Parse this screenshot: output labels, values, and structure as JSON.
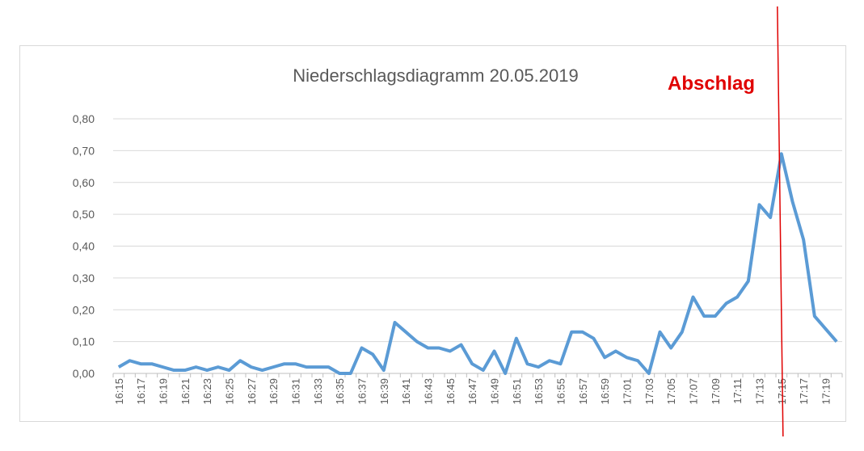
{
  "chart_data": {
    "type": "line",
    "title": "Niederschlagsdiagramm 20.05.2019",
    "xlabel": "",
    "ylabel": "",
    "ylim": [
      0,
      0.8
    ],
    "y_ticks": [
      "0,00",
      "0,10",
      "0,20",
      "0,30",
      "0,40",
      "0,50",
      "0,60",
      "0,70",
      "0,80"
    ],
    "grid": true,
    "series_color": "#5b9bd5",
    "x": [
      "16:15",
      "16:16",
      "16:17",
      "16:18",
      "16:19",
      "16:20",
      "16:21",
      "16:22",
      "16:23",
      "16:24",
      "16:25",
      "16:26",
      "16:27",
      "16:28",
      "16:29",
      "16:30",
      "16:31",
      "16:32",
      "16:33",
      "16:34",
      "16:35",
      "16:36",
      "16:37",
      "16:38",
      "16:39",
      "16:40",
      "16:41",
      "16:42",
      "16:43",
      "16:44",
      "16:45",
      "16:46",
      "16:47",
      "16:48",
      "16:49",
      "16:50",
      "16:51",
      "16:52",
      "16:53",
      "16:54",
      "16:55",
      "16:56",
      "16:57",
      "16:58",
      "16:59",
      "17:00",
      "17:01",
      "17:02",
      "17:03",
      "17:04",
      "17:05",
      "17:06",
      "17:07",
      "17:08",
      "17:09",
      "17:10",
      "17:11",
      "17:12",
      "17:13",
      "17:14",
      "17:15",
      "17:16",
      "17:17",
      "17:18",
      "17:19",
      "17:20"
    ],
    "x_tick_labels": [
      "16:15",
      "16:17",
      "16:19",
      "16:21",
      "16:23",
      "16:25",
      "16:27",
      "16:29",
      "16:31",
      "16:33",
      "16:35",
      "16:37",
      "16:39",
      "16:41",
      "16:43",
      "16:45",
      "16:47",
      "16:49",
      "16:51",
      "16:53",
      "16:55",
      "16:57",
      "16:59",
      "17:01",
      "17:03",
      "17:05",
      "17:07",
      "17:09",
      "17:11",
      "17:13",
      "17:15",
      "17:17",
      "17:19"
    ],
    "series": [
      {
        "values": [
          0.02,
          0.04,
          0.03,
          0.03,
          0.02,
          0.01,
          0.01,
          0.02,
          0.01,
          0.02,
          0.01,
          0.04,
          0.02,
          0.01,
          0.02,
          0.03,
          0.03,
          0.02,
          0.02,
          0.02,
          0.0,
          0.0,
          0.08,
          0.06,
          0.01,
          0.16,
          0.13,
          0.1,
          0.08,
          0.08,
          0.07,
          0.09,
          0.03,
          0.01,
          0.07,
          0.0,
          0.11,
          0.03,
          0.02,
          0.04,
          0.03,
          0.13,
          0.13,
          0.11,
          0.05,
          0.07,
          0.05,
          0.04,
          0.0,
          0.13,
          0.08,
          0.13,
          0.24,
          0.18,
          0.18,
          0.22,
          0.24,
          0.29,
          0.53,
          0.49,
          0.69,
          0.54,
          0.42,
          0.18,
          0.14,
          0.1
        ]
      }
    ],
    "annotations": [
      {
        "text": "Abschlag",
        "at_x": "17:15",
        "color": "#e00000"
      }
    ]
  }
}
